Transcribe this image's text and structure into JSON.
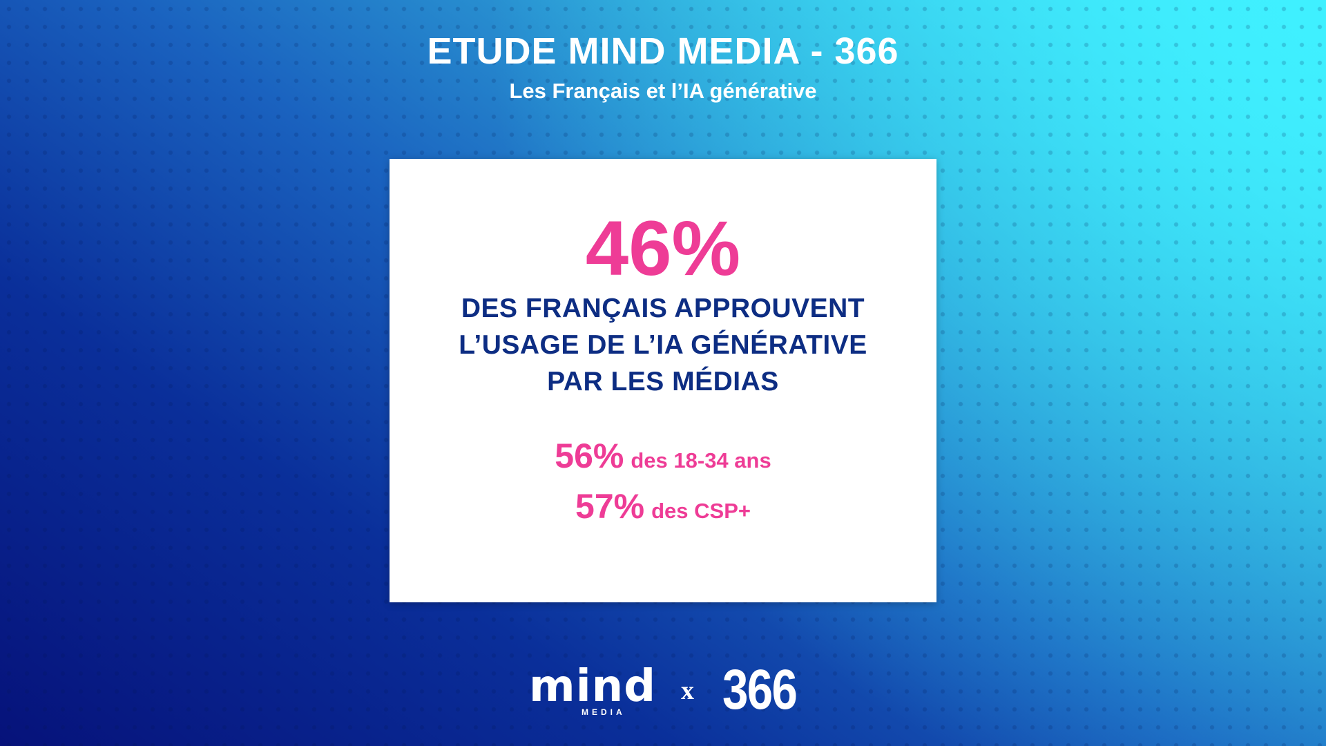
{
  "header": {
    "title": "ETUDE MIND MEDIA - 366",
    "subtitle": "Les Français et l’IA générative"
  },
  "card": {
    "main_stat": "46%",
    "headline_lines": [
      "DES FRANÇAIS APPROUVENT",
      "L’USAGE DE L’IA GÉNÉRATIVE",
      "PAR LES MÉDIAS"
    ],
    "sub_stats": [
      {
        "value": "56%",
        "label": "des 18-34 ans"
      },
      {
        "value": "57%",
        "label": "des CSP+"
      }
    ]
  },
  "footer": {
    "logo_mind": "mind",
    "logo_mind_sub": "MEDIA",
    "separator": "x",
    "logo_partner": "366"
  },
  "colors": {
    "accent_pink": "#ee3c96",
    "headline_navy": "#0d2d83",
    "background_dark": "#06127a",
    "background_light": "#45eeff",
    "card_background": "#ffffff"
  }
}
